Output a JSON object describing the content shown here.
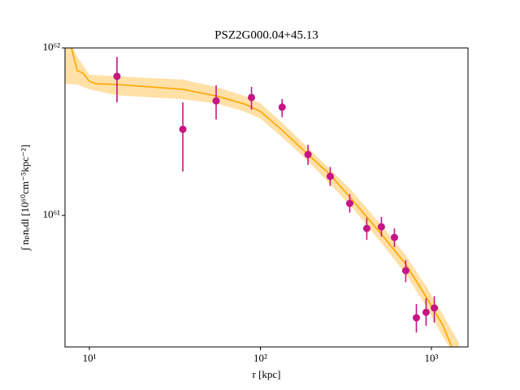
{
  "chart_data": {
    "type": "scatter",
    "title": "PSZ2G000.04+45.13",
    "xlabel": "r [kpc]",
    "ylabel": "∫ nₚnₑdl [10⁶⁰cm⁻⁵kpc⁻²]",
    "xscale": "log",
    "yscale": "log",
    "xlim": [
      7.2,
      1637
    ],
    "ylim": [
      1.64e+60,
      1e+62
    ],
    "xticks": [
      {
        "value": 10,
        "label": "10¹"
      },
      {
        "value": 100,
        "label": "10²"
      },
      {
        "value": 1000,
        "label": "10³"
      }
    ],
    "yticks": [
      {
        "value": 1e+61,
        "label": "10⁶¹"
      },
      {
        "value": 1e+62,
        "label": "10⁶²"
      }
    ],
    "series": [
      {
        "color": "#c71585",
        "x": [
          14.5,
          35.2,
          55.1,
          88.7,
          134,
          190,
          256,
          333,
          419,
          510,
          608,
          708,
          817,
          931,
          1040
        ],
        "values": [
          6.77e+61,
          3.27e+61,
          4.83e+61,
          5.06e+61,
          4.43e+61,
          2.31e+61,
          1.71e+61,
          1.18e+61,
          8.36e+60,
          8.55e+60,
          7.39e+60,
          4.68e+60,
          2.45e+60,
          2.64e+60,
          2.8e+60
        ],
        "error_low": [
          2.04e+61,
          1.44e+61,
          1.09e+61,
          7.8e+60,
          5.7e+60,
          3.1e+60,
          2.1e+60,
          1.4e+60,
          1.21e+60,
          1.07e+60,
          9.2e+59,
          6.8e+59,
          4.5e+59,
          4.5e+59,
          5.1e+59
        ],
        "error_high": [
          2.08e+61,
          1.46e+61,
          1.15e+61,
          7.9e+60,
          5.2e+60,
          3.3e+60,
          2.4e+60,
          1.6e+60,
          1.3e+60,
          1.25e+60,
          9.7e+59,
          7.3e+59,
          5.1e+59,
          5.6e+59,
          5e+59
        ]
      }
    ],
    "model": {
      "color": "#ffa500",
      "x": [
        7.86,
        8.49,
        9.16,
        10,
        10.9,
        14.5,
        35.2,
        55.1,
        80.4,
        100,
        134,
        190,
        256,
        333,
        510,
        708,
        931,
        1167,
        1316
      ],
      "values": [
        1e+62,
        7.31e+61,
        7.08e+61,
        6.33e+61,
        6.11e+61,
        6.05e+61,
        5.66e+61,
        5.17e+61,
        4.63e+61,
        4.18e+61,
        3.23e+61,
        2.31e+61,
        1.75e+61,
        1.29e+61,
        7.73e+60,
        5.11e+60,
        3.27e+60,
        2.21e+60,
        1.64e+60
      ]
    },
    "band": {
      "color": "#ffa500",
      "x": [
        7.2,
        8.49,
        10,
        14.5,
        35.2,
        55.1,
        80.4,
        100,
        134,
        190,
        333,
        510,
        708,
        931,
        1167,
        1452
      ],
      "upper": [
        1.24e+62,
        8.85e+61,
        6.92e+61,
        6.77e+61,
        6.47e+61,
        5.85e+61,
        5.17e+61,
        4.67e+61,
        3.58e+61,
        2.53e+61,
        1.45e+61,
        8.75e+60,
        5.78e+60,
        3.78e+60,
        2.56e+60,
        1.73e+60
      ],
      "lower": [
        6.11e+61,
        6.05e+61,
        5.66e+61,
        5.22e+61,
        4.94e+61,
        4.67e+61,
        4.18e+61,
        3.78e+61,
        2.93e+61,
        2.11e+61,
        1.16e+61,
        6.84e+60,
        4.47e+60,
        2.86e+60,
        1.89e+60,
        1.34e+60
      ]
    }
  }
}
